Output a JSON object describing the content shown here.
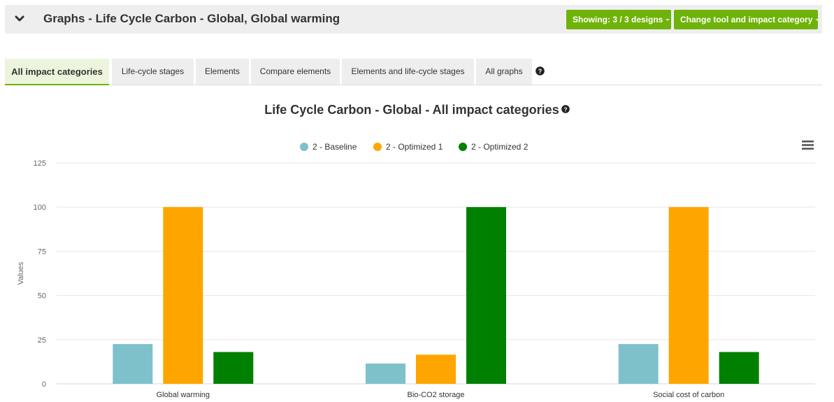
{
  "header": {
    "title": "Graphs - Life Cycle Carbon - Global, Global warming",
    "showing_label": "Showing: 3 / 3 designs",
    "change_label": "Change tool and impact category",
    "accent_color": "#6fb30a"
  },
  "tabs": [
    {
      "label": "All impact categories",
      "active": true
    },
    {
      "label": "Life-cycle stages",
      "active": false
    },
    {
      "label": "Elements",
      "active": false
    },
    {
      "label": "Compare elements",
      "active": false
    },
    {
      "label": "Elements and life-cycle stages",
      "active": false
    },
    {
      "label": "All graphs",
      "active": false
    }
  ],
  "chart_title": "Life Cycle Carbon - Global - All impact categories",
  "chart_data": {
    "type": "bar",
    "title": "Life Cycle Carbon - Global - All impact categories",
    "categories": [
      "Global warming",
      "Bio-CO2 storage",
      "Social cost of carbon"
    ],
    "series": [
      {
        "name": "2 - Baseline",
        "color": "#7ec1cb",
        "values": [
          22.5,
          11.5,
          22.5
        ]
      },
      {
        "name": "2 - Optimized 1",
        "color": "#ffa500",
        "values": [
          100,
          16.5,
          100
        ]
      },
      {
        "name": "2 - Optimized 2",
        "color": "#008000",
        "values": [
          18,
          100,
          18
        ]
      }
    ],
    "ylabel": "Values",
    "ylim": [
      0,
      125
    ],
    "yticks": [
      "0",
      "25",
      "50",
      "75",
      "100",
      "125"
    ],
    "grid": true,
    "legend": "top-center"
  }
}
